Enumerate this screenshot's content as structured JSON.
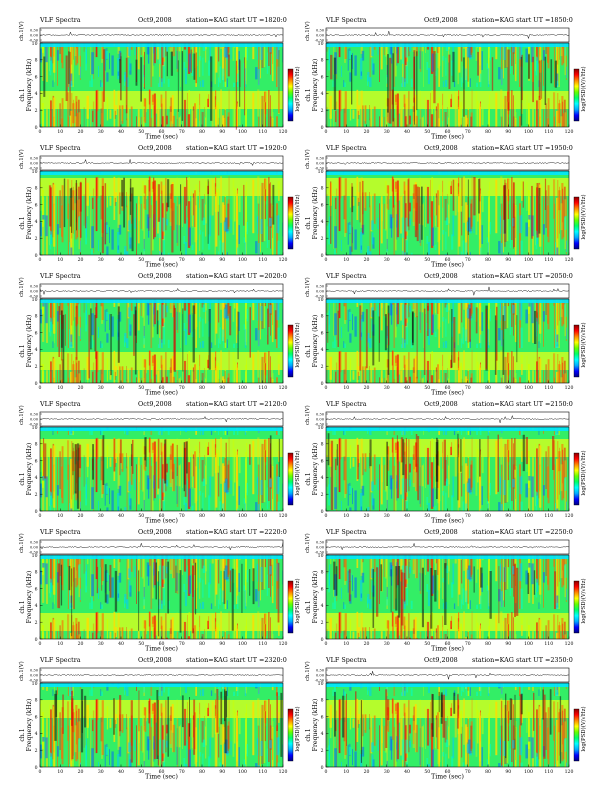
{
  "chart_data": {
    "type": "heatmap",
    "panels": [
      {
        "app": "VLF Spectra",
        "date": "Oct9,2008",
        "station": "station=KAG",
        "start_ut": "start UT =1820:0"
      },
      {
        "app": "VLF Spectra",
        "date": "Oct9,2008",
        "station": "station=KAG",
        "start_ut": "start UT =1850:0"
      },
      {
        "app": "VLF Spectra",
        "date": "Oct9,2008",
        "station": "station=KAG",
        "start_ut": "start UT =1920:0"
      },
      {
        "app": "VLF Spectra",
        "date": "Oct9,2008",
        "station": "station=KAG",
        "start_ut": "start UT =1950:0"
      },
      {
        "app": "VLF Spectra",
        "date": "Oct9,2008",
        "station": "station=KAG",
        "start_ut": "start UT =2020:0"
      },
      {
        "app": "VLF Spectra",
        "date": "Oct9,2008",
        "station": "station=KAG",
        "start_ut": "start UT =2050:0"
      },
      {
        "app": "VLF Spectra",
        "date": "Oct9,2008",
        "station": "station=KAG",
        "start_ut": "start UT =2120:0"
      },
      {
        "app": "VLF Spectra",
        "date": "Oct9,2008",
        "station": "station=KAG",
        "start_ut": "start UT =2150:0"
      },
      {
        "app": "VLF Spectra",
        "date": "Oct9,2008",
        "station": "station=KAG",
        "start_ut": "start UT =2220:0"
      },
      {
        "app": "VLF Spectra",
        "date": "Oct9,2008",
        "station": "station=KAG",
        "start_ut": "start UT =2250:0"
      },
      {
        "app": "VLF Spectra",
        "date": "Oct9,2008",
        "station": "station=KAG",
        "start_ut": "start UT =2320:0"
      },
      {
        "app": "VLF Spectra",
        "date": "Oct9,2008",
        "station": "station=KAG",
        "start_ut": "start UT =2350:0"
      }
    ],
    "waveform_axis": {
      "ylabel": "ch.1(V)",
      "ticks": [
        "0.30",
        "0.00",
        "-0.30"
      ]
    },
    "spectrogram_axis": {
      "xlabel": "Time (sec)",
      "ylabel_channel": "ch.1",
      "ylabel": "Frequency (kHz)",
      "xlim": [
        0,
        120
      ],
      "ylim": [
        0,
        10
      ],
      "xticks": [
        "0",
        "10",
        "20",
        "30",
        "40",
        "50",
        "60",
        "70",
        "80",
        "90",
        "100",
        "110",
        "120"
      ],
      "yticks": [
        "0",
        "2",
        "4",
        "6",
        "8",
        "10"
      ]
    },
    "colorbar": {
      "label": "log(PSD)(V/√Hz)",
      "colors": [
        "#000080",
        "#0000ff",
        "#00aaff",
        "#00ffff",
        "#00ff66",
        "#66ff00",
        "#ffff00",
        "#ff8800",
        "#ff0000",
        "#8b0000"
      ]
    }
  }
}
